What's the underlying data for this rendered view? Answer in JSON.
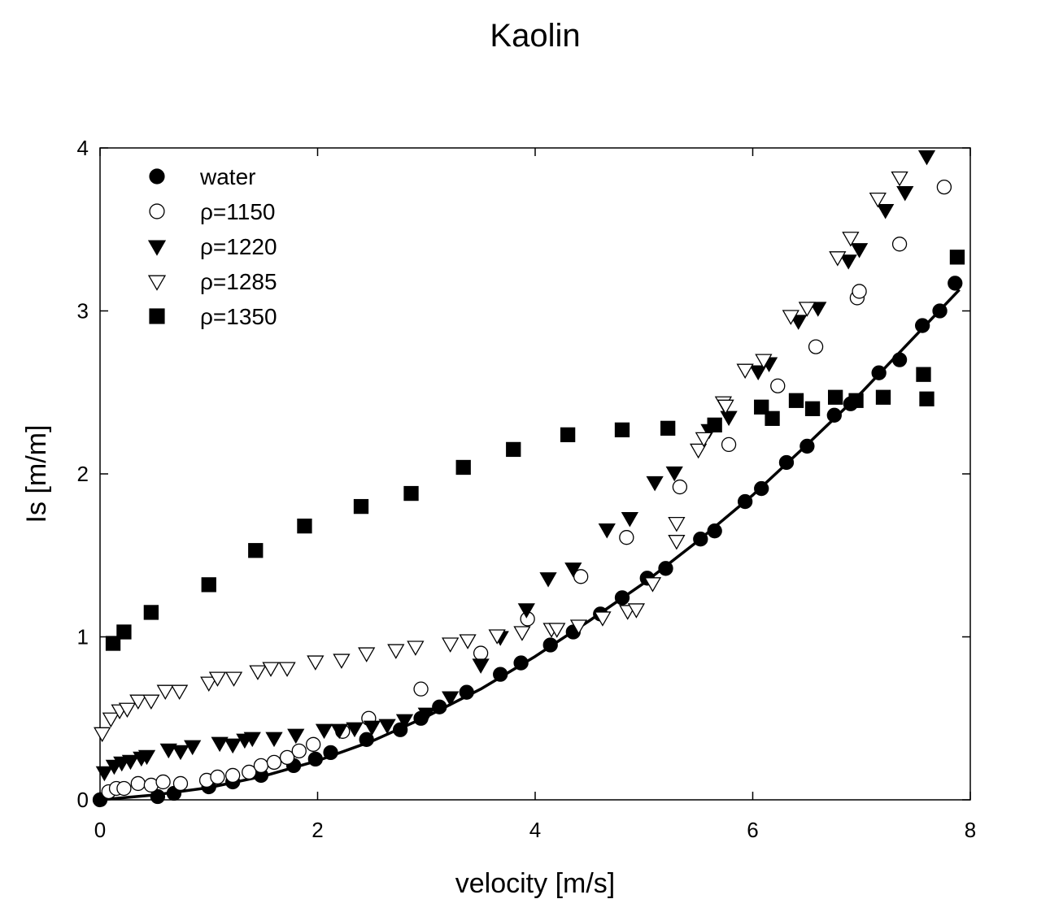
{
  "chart_data": {
    "type": "scatter",
    "title": "Kaolin",
    "xlabel": "velocity [m/s]",
    "ylabel": "Is [m/m]",
    "xlim": [
      0,
      8
    ],
    "ylim": [
      0,
      4
    ],
    "xticks": [
      0,
      2,
      4,
      6,
      8
    ],
    "yticks": [
      0,
      1,
      2,
      3,
      4
    ],
    "grid": false,
    "legend_position": "top-left",
    "series": [
      {
        "name": "water",
        "marker": "filled-circle",
        "color": "#000000",
        "x": [
          0.0,
          0.53,
          0.68,
          1.0,
          1.22,
          1.48,
          1.78,
          1.98,
          2.12,
          2.45,
          2.76,
          2.95,
          3.12,
          3.37,
          3.68,
          3.87,
          4.14,
          4.35,
          4.6,
          4.8,
          5.03,
          5.2,
          5.52,
          5.65,
          5.93,
          6.08,
          6.31,
          6.5,
          6.75,
          6.9,
          7.16,
          7.35,
          7.56,
          7.72,
          7.86
        ],
        "y": [
          0.0,
          0.02,
          0.04,
          0.08,
          0.11,
          0.15,
          0.21,
          0.25,
          0.29,
          0.37,
          0.43,
          0.5,
          0.57,
          0.66,
          0.77,
          0.84,
          0.95,
          1.03,
          1.14,
          1.24,
          1.36,
          1.42,
          1.6,
          1.65,
          1.83,
          1.91,
          2.07,
          2.17,
          2.36,
          2.43,
          2.62,
          2.7,
          2.91,
          3.0,
          3.17
        ]
      },
      {
        "name": "ρ=1150",
        "marker": "open-circle",
        "color": "#000000",
        "x": [
          0.08,
          0.15,
          0.22,
          0.35,
          0.47,
          0.58,
          0.74,
          0.98,
          1.08,
          1.22,
          1.37,
          1.48,
          1.6,
          1.72,
          1.83,
          1.96,
          2.23,
          2.47,
          2.95,
          3.5,
          3.93,
          4.42,
          4.84,
          5.33,
          5.78,
          6.23,
          6.58,
          6.96,
          6.98,
          7.35,
          7.76
        ],
        "y": [
          0.05,
          0.07,
          0.07,
          0.1,
          0.09,
          0.11,
          0.1,
          0.12,
          0.14,
          0.15,
          0.17,
          0.21,
          0.23,
          0.26,
          0.3,
          0.34,
          0.42,
          0.5,
          0.68,
          0.9,
          1.11,
          1.37,
          1.61,
          1.92,
          2.18,
          2.54,
          2.78,
          3.08,
          3.12,
          3.41,
          3.76
        ]
      },
      {
        "name": "ρ=1220",
        "marker": "filled-triangle-down",
        "color": "#000000",
        "x": [
          0.04,
          0.13,
          0.2,
          0.28,
          0.38,
          0.43,
          0.63,
          0.74,
          0.85,
          1.1,
          1.22,
          1.33,
          1.4,
          1.6,
          1.8,
          2.06,
          2.2,
          2.34,
          2.5,
          2.64,
          2.8,
          3.0,
          3.22,
          3.5,
          3.68,
          3.92,
          4.12,
          4.35,
          4.66,
          4.87,
          5.1,
          5.28,
          5.6,
          5.78,
          6.05,
          6.15,
          6.42,
          6.6,
          6.88,
          6.98,
          7.22,
          7.4,
          7.6
        ],
        "y": [
          0.17,
          0.21,
          0.23,
          0.24,
          0.26,
          0.27,
          0.31,
          0.3,
          0.33,
          0.35,
          0.34,
          0.37,
          0.38,
          0.38,
          0.4,
          0.43,
          0.43,
          0.44,
          0.45,
          0.46,
          0.49,
          0.53,
          0.63,
          0.83,
          1.0,
          1.17,
          1.36,
          1.42,
          1.66,
          1.73,
          1.95,
          2.01,
          2.27,
          2.35,
          2.63,
          2.68,
          2.94,
          3.02,
          3.31,
          3.38,
          3.62,
          3.73,
          3.95
        ]
      },
      {
        "name": "ρ=1285",
        "marker": "open-triangle-down",
        "color": "#000000",
        "x": [
          0.02,
          0.1,
          0.18,
          0.25,
          0.35,
          0.47,
          0.6,
          0.73,
          1.0,
          1.08,
          1.23,
          1.45,
          1.57,
          1.72,
          1.98,
          2.22,
          2.45,
          2.72,
          2.9,
          3.22,
          3.38,
          3.65,
          3.88,
          4.15,
          4.2,
          4.4,
          4.62,
          4.85,
          4.93,
          5.08,
          5.3,
          5.3,
          5.5,
          5.55,
          5.73,
          5.75,
          5.93,
          6.1,
          6.35,
          6.5,
          6.78,
          6.9,
          7.15,
          7.35
        ],
        "y": [
          0.41,
          0.5,
          0.55,
          0.56,
          0.61,
          0.61,
          0.67,
          0.67,
          0.72,
          0.75,
          0.75,
          0.79,
          0.81,
          0.81,
          0.85,
          0.86,
          0.9,
          0.92,
          0.94,
          0.96,
          0.98,
          1.01,
          1.03,
          1.05,
          1.05,
          1.07,
          1.12,
          1.16,
          1.17,
          1.33,
          1.59,
          1.7,
          2.15,
          2.22,
          2.44,
          2.42,
          2.64,
          2.7,
          2.97,
          3.02,
          3.33,
          3.45,
          3.69,
          3.82
        ]
      },
      {
        "name": "ρ=1350",
        "marker": "filled-square",
        "color": "#000000",
        "x": [
          0.12,
          0.22,
          0.47,
          1.0,
          1.43,
          1.88,
          2.4,
          2.86,
          3.34,
          3.8,
          4.3,
          4.8,
          5.22,
          5.65,
          6.08,
          6.18,
          6.4,
          6.55,
          6.76,
          6.95,
          7.2,
          7.57,
          7.6,
          7.88
        ],
        "y": [
          0.96,
          1.03,
          1.15,
          1.32,
          1.53,
          1.68,
          1.8,
          1.88,
          2.04,
          2.15,
          2.24,
          2.27,
          2.28,
          2.3,
          2.41,
          2.34,
          2.45,
          2.4,
          2.47,
          2.45,
          2.47,
          2.61,
          2.46,
          3.33
        ]
      }
    ],
    "fit_curve": {
      "series": "water",
      "x": [
        0,
        0.5,
        1,
        1.5,
        2,
        2.5,
        3,
        3.5,
        4,
        4.5,
        5,
        5.5,
        6,
        6.5,
        7,
        7.5,
        7.9
      ],
      "y": [
        0,
        0.03,
        0.075,
        0.145,
        0.24,
        0.36,
        0.51,
        0.68,
        0.88,
        1.1,
        1.33,
        1.59,
        1.87,
        2.18,
        2.5,
        2.85,
        3.13
      ]
    }
  }
}
